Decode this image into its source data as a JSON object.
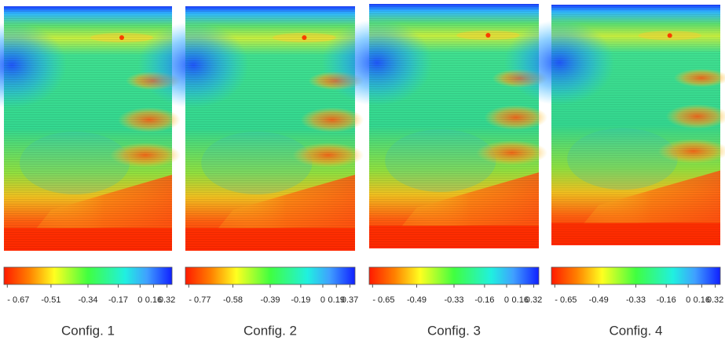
{
  "panels": [
    {
      "caption": "Config. 1",
      "ticks": [
        "- 0.67",
        "-0.51",
        "-0.34",
        "-0.17",
        "0",
        "0.16",
        "0.32"
      ]
    },
    {
      "caption": "Config. 2",
      "ticks": [
        "- 0.77",
        "-0.58",
        "-0.39",
        "-0.19",
        "0",
        "0.19",
        "0.37"
      ]
    },
    {
      "caption": "Config. 3",
      "ticks": [
        "- 0.65",
        "-0.49",
        "-0.33",
        "-0.16",
        "0",
        "0.16",
        "0.32"
      ]
    },
    {
      "caption": "Config. 4",
      "ticks": [
        "- 0.65",
        "-0.49",
        "-0.33",
        "-0.16",
        "0",
        "0.16",
        "0.32"
      ]
    }
  ]
}
